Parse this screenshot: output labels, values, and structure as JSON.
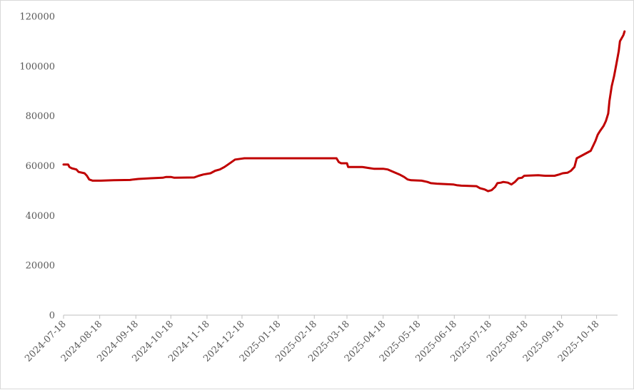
{
  "chart_data": {
    "type": "line",
    "title": "",
    "xlabel": "",
    "ylabel": "",
    "ylim": [
      0,
      120000
    ],
    "yticks": [
      0,
      20000,
      40000,
      60000,
      80000,
      100000,
      120000
    ],
    "ytick_labels": [
      "0",
      "20000",
      "40000",
      "60000",
      "80000",
      "100000",
      "120000"
    ],
    "xticks": [
      "2024-07-18",
      "2024-08-18",
      "2024-09-18",
      "2024-10-18",
      "2024-11-18",
      "2024-12-18",
      "2025-01-18",
      "2025-02-18",
      "2025-03-18",
      "2025-04-18",
      "2025-05-18",
      "2025-06-18",
      "2025-07-18",
      "2025-08-18",
      "2025-09-18",
      "2025-10-18"
    ],
    "xlim": [
      "2024-07-18",
      "2025-11-05"
    ],
    "grid": false,
    "legend": "none",
    "series": [
      {
        "color": "#c00000",
        "points": [
          [
            "2024-07-18",
            60500
          ],
          [
            "2024-07-22",
            60500
          ],
          [
            "2024-07-23",
            59500
          ],
          [
            "2024-07-25",
            59000
          ],
          [
            "2024-07-29",
            58500
          ],
          [
            "2024-07-31",
            57500
          ],
          [
            "2024-08-05",
            57000
          ],
          [
            "2024-08-07",
            56000
          ],
          [
            "2024-08-09",
            54500
          ],
          [
            "2024-08-12",
            54000
          ],
          [
            "2024-08-19",
            54000
          ],
          [
            "2024-08-30",
            54200
          ],
          [
            "2024-09-13",
            54300
          ],
          [
            "2024-09-16",
            54500
          ],
          [
            "2024-09-20",
            54700
          ],
          [
            "2024-10-01",
            55000
          ],
          [
            "2024-10-11",
            55200
          ],
          [
            "2024-10-14",
            55500
          ],
          [
            "2024-10-18",
            55500
          ],
          [
            "2024-10-21",
            55200
          ],
          [
            "2024-11-07",
            55300
          ],
          [
            "2024-11-11",
            56000
          ],
          [
            "2024-11-15",
            56500
          ],
          [
            "2024-11-21",
            57000
          ],
          [
            "2024-11-25",
            58000
          ],
          [
            "2024-11-29",
            58500
          ],
          [
            "2024-12-03",
            59500
          ],
          [
            "2024-12-06",
            60500
          ],
          [
            "2024-12-09",
            61500
          ],
          [
            "2024-12-12",
            62500
          ],
          [
            "2024-12-17",
            62800
          ],
          [
            "2024-12-20",
            63000
          ],
          [
            "2025-03-09",
            63000
          ],
          [
            "2025-03-11",
            61500
          ],
          [
            "2025-03-13",
            61000
          ],
          [
            "2025-03-18",
            61000
          ],
          [
            "2025-03-19",
            59500
          ],
          [
            "2025-03-31",
            59500
          ],
          [
            "2025-04-07",
            59000
          ],
          [
            "2025-04-10",
            58800
          ],
          [
            "2025-04-18",
            58800
          ],
          [
            "2025-04-22",
            58500
          ],
          [
            "2025-04-27",
            57500
          ],
          [
            "2025-05-02",
            56500
          ],
          [
            "2025-05-06",
            55500
          ],
          [
            "2025-05-09",
            54500
          ],
          [
            "2025-05-12",
            54200
          ],
          [
            "2025-05-21",
            54000
          ],
          [
            "2025-05-26",
            53500
          ],
          [
            "2025-05-29",
            53000
          ],
          [
            "2025-06-03",
            52800
          ],
          [
            "2025-06-17",
            52500
          ],
          [
            "2025-06-20",
            52200
          ],
          [
            "2025-06-24",
            52000
          ],
          [
            "2025-07-07",
            51800
          ],
          [
            "2025-07-10",
            51000
          ],
          [
            "2025-07-14",
            50500
          ],
          [
            "2025-07-17",
            49800
          ],
          [
            "2025-07-20",
            50200
          ],
          [
            "2025-07-23",
            51500
          ],
          [
            "2025-07-25",
            53000
          ],
          [
            "2025-07-28",
            53200
          ],
          [
            "2025-07-30",
            53500
          ],
          [
            "2025-08-03",
            53200
          ],
          [
            "2025-08-06",
            52500
          ],
          [
            "2025-08-09",
            53500
          ],
          [
            "2025-08-12",
            55000
          ],
          [
            "2025-08-15",
            55200
          ],
          [
            "2025-08-17",
            56000
          ],
          [
            "2025-08-29",
            56200
          ],
          [
            "2025-09-04",
            56000
          ],
          [
            "2025-09-12",
            56000
          ],
          [
            "2025-09-16",
            56500
          ],
          [
            "2025-09-19",
            57000
          ],
          [
            "2025-09-23",
            57200
          ],
          [
            "2025-09-26",
            58000
          ],
          [
            "2025-09-29",
            59500
          ],
          [
            "2025-10-01",
            63000
          ],
          [
            "2025-10-05",
            64000
          ],
          [
            "2025-10-09",
            65000
          ],
          [
            "2025-10-13",
            66000
          ],
          [
            "2025-10-15",
            68000
          ],
          [
            "2025-10-17",
            70000
          ],
          [
            "2025-10-19",
            72500
          ],
          [
            "2025-10-21",
            74000
          ],
          [
            "2025-10-24",
            76000
          ],
          [
            "2025-10-26",
            78000
          ],
          [
            "2025-10-28",
            81000
          ],
          [
            "2025-10-29",
            86000
          ],
          [
            "2025-10-31",
            92000
          ],
          [
            "2025-11-02",
            96000
          ],
          [
            "2025-11-04",
            101000
          ],
          [
            "2025-11-06",
            106000
          ],
          [
            "2025-11-07",
            110000
          ],
          [
            "2025-11-10",
            112500
          ],
          [
            "2025-11-11",
            114000
          ]
        ]
      }
    ]
  }
}
